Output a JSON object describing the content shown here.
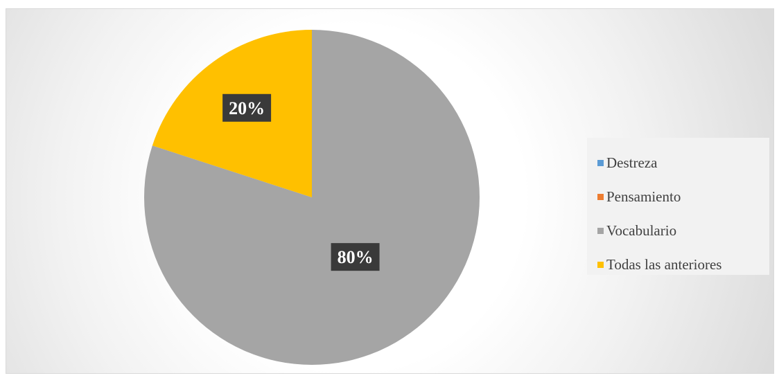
{
  "chart_data": {
    "type": "pie",
    "categories": [
      "Destreza",
      "Pensamiento",
      "Vocabulario",
      "Todas las anteriores"
    ],
    "values": [
      0,
      0,
      80,
      20
    ],
    "data_labels": [
      "",
      "",
      "80%",
      "20%"
    ],
    "colors": [
      "#5b9bd5",
      "#ed7d31",
      "#a5a5a5",
      "#ffc000"
    ],
    "start_angle_deg": 0,
    "direction": "clockwise",
    "legend_position": "right"
  }
}
